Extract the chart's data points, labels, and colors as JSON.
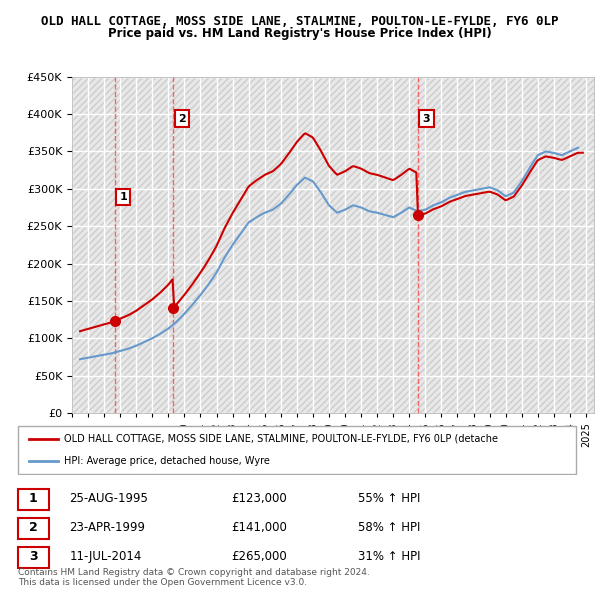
{
  "title": "OLD HALL COTTAGE, MOSS SIDE LANE, STALMINE, POULTON-LE-FYLDE, FY6 0LP",
  "subtitle": "Price paid vs. HM Land Registry's House Price Index (HPI)",
  "ylim": [
    0,
    450000
  ],
  "yticks": [
    0,
    50000,
    100000,
    150000,
    200000,
    250000,
    300000,
    350000,
    400000,
    450000
  ],
  "ylabel_format": "£{0}K",
  "bg_color": "#f0f0f0",
  "plot_bg_color": "#e8e8e8",
  "hatch_color": "#cccccc",
  "grid_color": "#ffffff",
  "sale_points": [
    {
      "date": 1995.65,
      "price": 123000,
      "label": "1"
    },
    {
      "date": 1999.31,
      "price": 141000,
      "label": "2"
    },
    {
      "date": 2014.53,
      "price": 265000,
      "label": "3"
    }
  ],
  "vline_dates": [
    1995.65,
    1999.31,
    2014.53
  ],
  "legend_property_label": "OLD HALL COTTAGE, MOSS SIDE LANE, STALMINE, POULTON-LE-FYLDE, FY6 0LP (detache",
  "legend_hpi_label": "HPI: Average price, detached house, Wyre",
  "table_rows": [
    {
      "num": "1",
      "date": "25-AUG-1995",
      "price": "£123,000",
      "change": "55% ↑ HPI"
    },
    {
      "num": "2",
      "date": "23-APR-1999",
      "price": "£141,000",
      "change": "58% ↑ HPI"
    },
    {
      "num": "3",
      "date": "11-JUL-2014",
      "price": "£265,000",
      "change": "31% ↑ HPI"
    }
  ],
  "footer": "Contains HM Land Registry data © Crown copyright and database right 2024.\nThis data is licensed under the Open Government Licence v3.0.",
  "property_color": "#cc0000",
  "hpi_color": "#6699cc",
  "sale_dot_color": "#cc0000",
  "vline_color": "#ff4444"
}
